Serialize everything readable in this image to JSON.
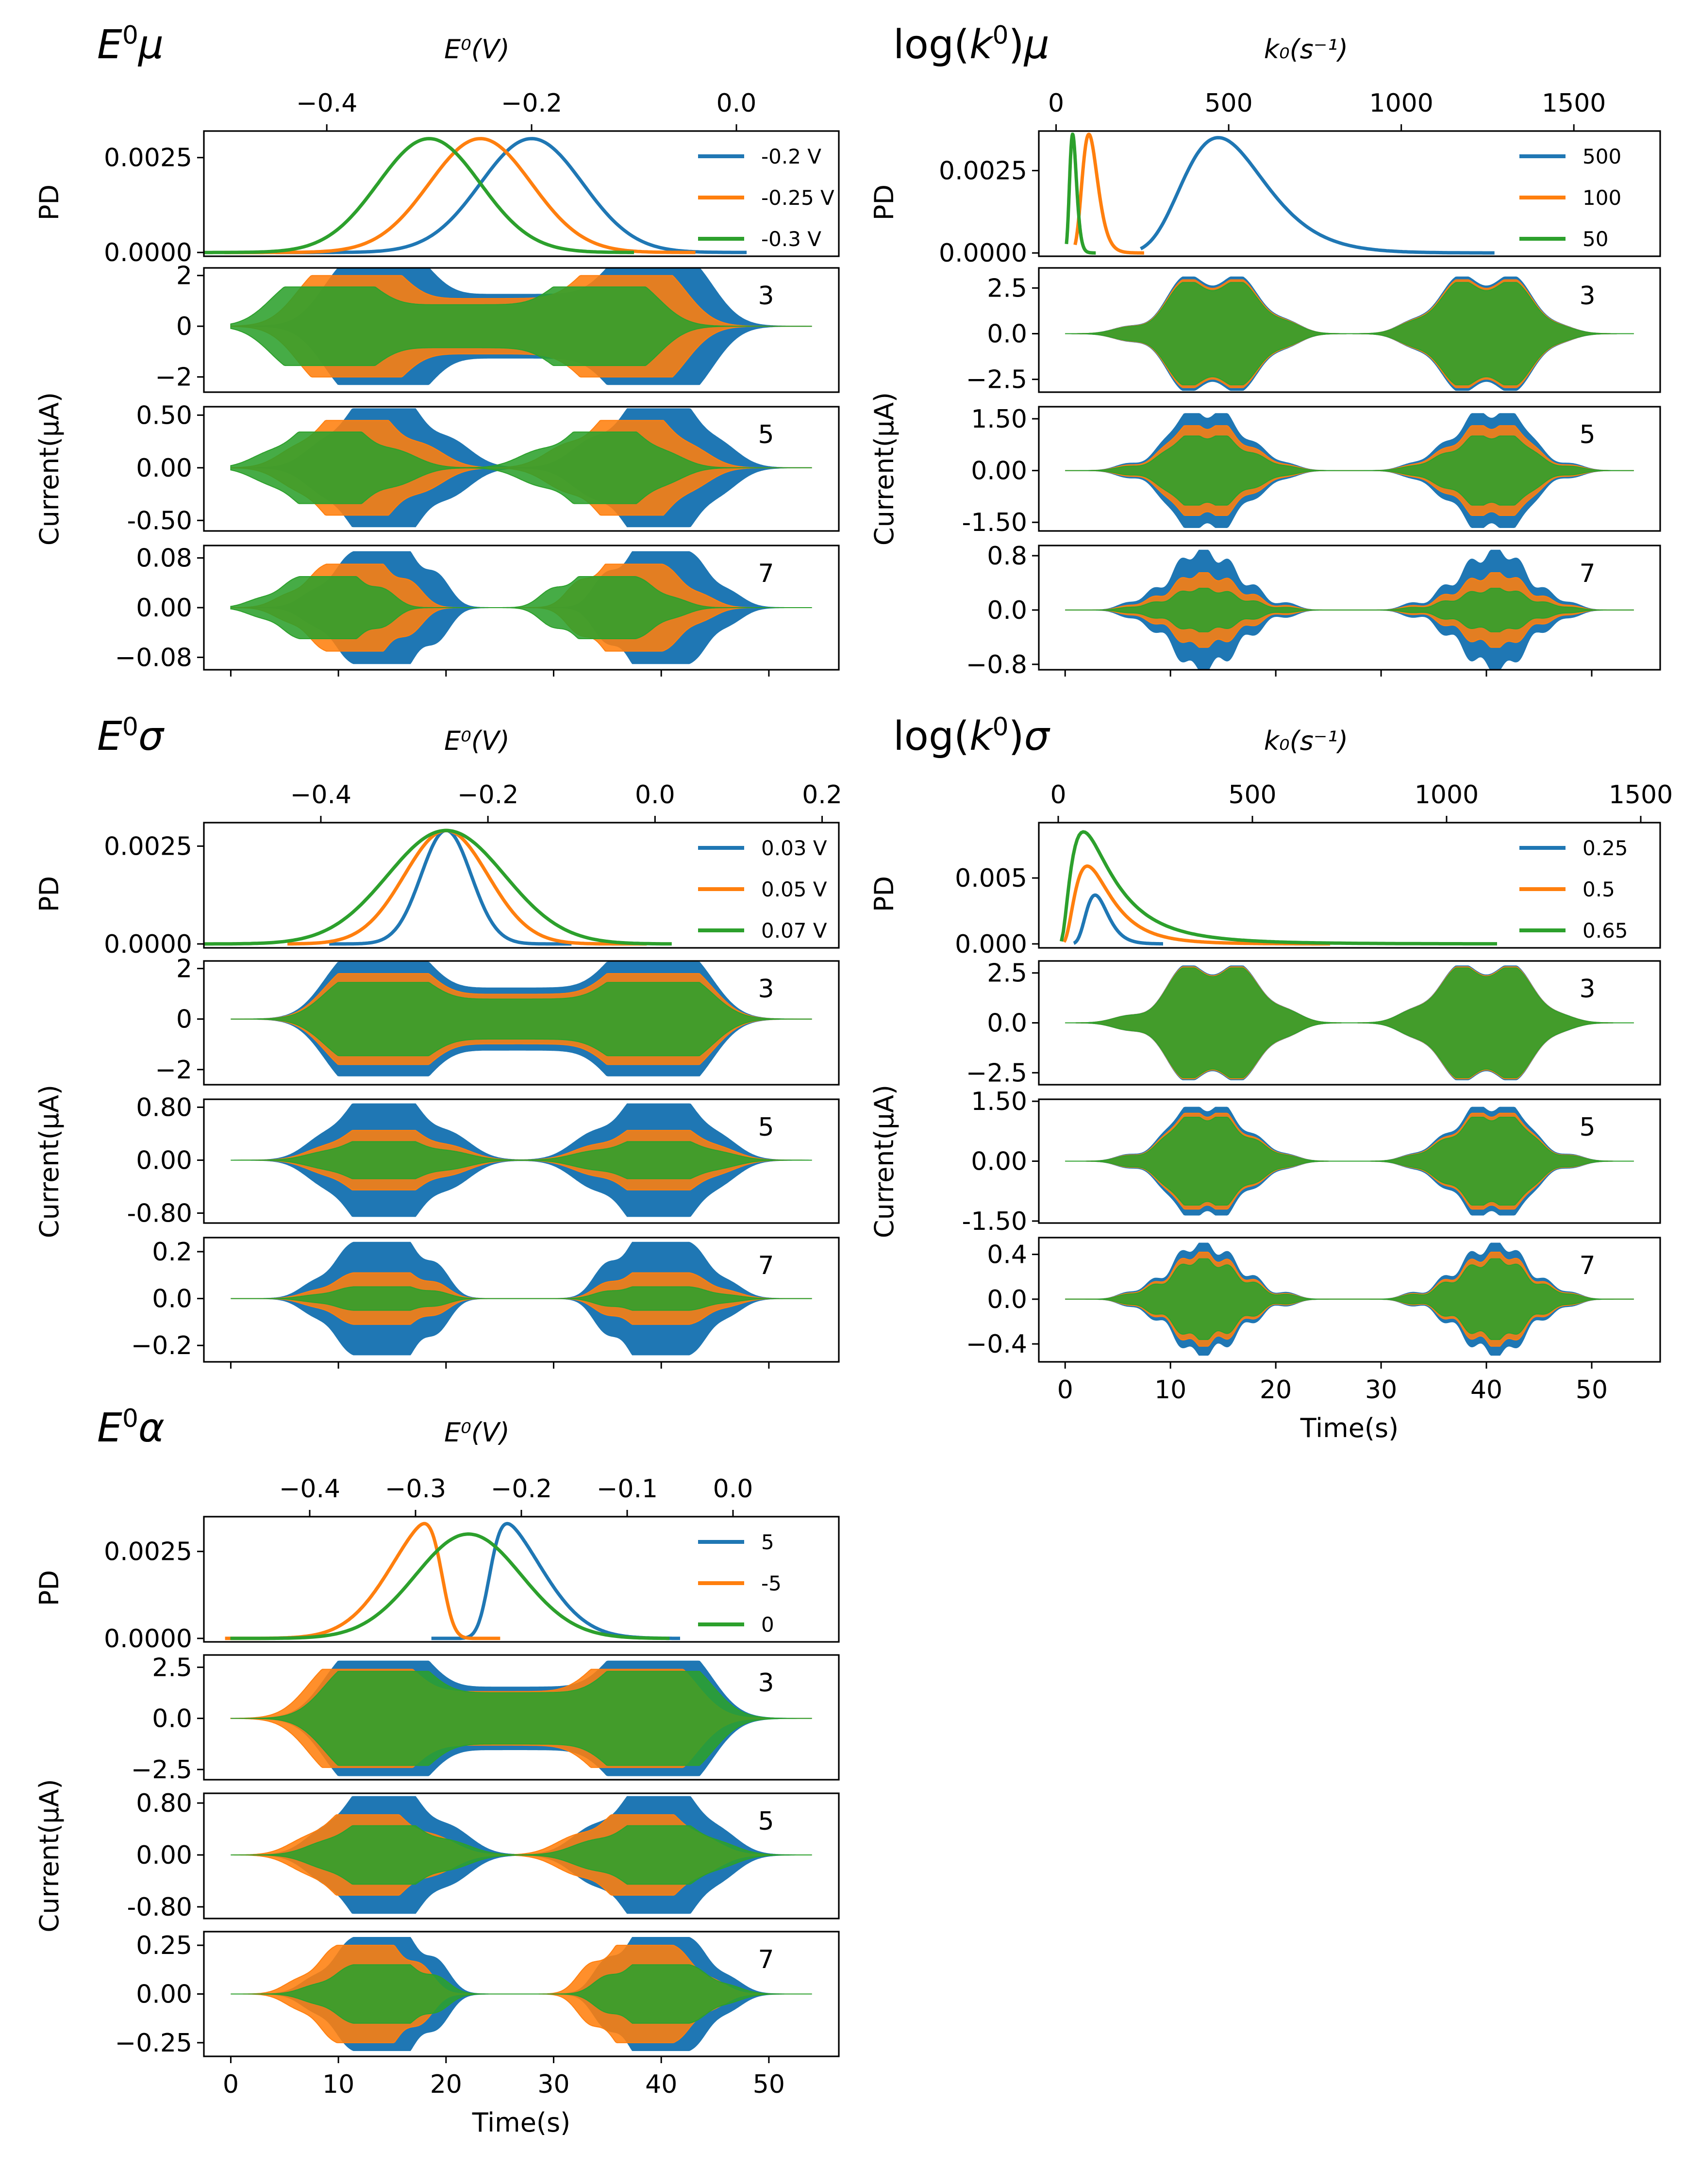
{
  "chart_data": [
    {
      "type": "line",
      "title": "E⁰μ",
      "title_parts": {
        "base": "E",
        "sup": "0",
        "greek": "μ"
      },
      "pd": {
        "top_axis_label": "E⁰(V)",
        "top_axis": {
          "range": [
            -0.52,
            0.1
          ],
          "ticks": [
            -0.4,
            -0.2,
            0.0
          ],
          "tick_labels": [
            "−0.4",
            "−0.2",
            "0.0"
          ]
        },
        "ylabel": "PD",
        "ylim": [
          -0.0001,
          0.0032
        ],
        "yticks": [
          0.0,
          0.0025
        ],
        "ytick_labels": [
          "0.0000",
          "0.0025"
        ],
        "legend_position": "upper right",
        "series": [
          {
            "name": "-0.2 V",
            "color": "#1f77b4",
            "mean": -0.2,
            "sd": 0.05,
            "range": [
              -0.45,
              0.01
            ]
          },
          {
            "name": "-0.25 V",
            "color": "#ff7f0e",
            "mean": -0.25,
            "sd": 0.05,
            "range": [
              -0.5,
              -0.04
            ]
          },
          {
            "name": "-0.3 V",
            "color": "#2ca02c",
            "mean": -0.3,
            "sd": 0.05,
            "range": [
              -0.52,
              -0.1
            ]
          }
        ]
      },
      "harmonics": [
        {
          "label": "3",
          "ylim": [
            -2.6,
            2.3
          ],
          "yticks": [
            -2,
            0,
            2
          ],
          "ytick_labels": [
            "−2",
            "0",
            "2"
          ],
          "amps": [
            2.3,
            2.0,
            1.55
          ],
          "envelope": "h3",
          "shift": [
            0,
            -2.5,
            -5
          ]
        },
        {
          "label": "5",
          "ylim": [
            -0.6,
            0.58
          ],
          "yticks": [
            -0.5,
            0.0,
            0.5
          ],
          "ytick_labels": [
            "-0.50",
            "0.00",
            "0.50"
          ],
          "amps": [
            0.56,
            0.45,
            0.34
          ],
          "envelope": "h5",
          "shift": [
            0,
            -2.5,
            -5
          ]
        },
        {
          "label": "7",
          "ylim": [
            -0.1,
            0.1
          ],
          "yticks": [
            -0.08,
            0.0,
            0.08
          ],
          "ytick_labels": [
            "−0.08",
            "0.00",
            "0.08"
          ],
          "amps": [
            0.09,
            0.07,
            0.05
          ],
          "envelope": "h7",
          "shift": [
            0,
            -2.5,
            -5
          ]
        }
      ],
      "current_ylabel": "Current(μA)"
    },
    {
      "type": "line",
      "title": "log(k⁰)μ",
      "title_parts": {
        "pre": "log(",
        "base": "k",
        "sup": "0",
        "post": ")",
        "greek": "μ"
      },
      "pd": {
        "top_axis_label": "k₀(s⁻¹)",
        "top_axis": {
          "range": [
            -50,
            1750
          ],
          "ticks": [
            0,
            500,
            1000,
            1500
          ],
          "tick_labels": [
            "0",
            "500",
            "1000",
            "1500"
          ]
        },
        "ylabel": "PD",
        "ylim": [
          -0.0001,
          0.0037
        ],
        "yticks": [
          0.0,
          0.0025
        ],
        "ytick_labels": [
          "0.0000",
          "0.0025"
        ],
        "legend_position": "upper right",
        "series": [
          {
            "name": "500",
            "color": "#1f77b4",
            "peak_x": 470,
            "range": [
              245,
              1270
            ],
            "kind": "lognorm",
            "height": 0.0035
          },
          {
            "name": "100",
            "color": "#ff7f0e",
            "peak_x": 95,
            "range": [
              55,
              255
            ],
            "kind": "lognorm",
            "height": 0.0036
          },
          {
            "name": "50",
            "color": "#2ca02c",
            "peak_x": 48,
            "range": [
              30,
              115
            ],
            "kind": "lognorm",
            "height": 0.0036
          }
        ]
      },
      "harmonics": [
        {
          "label": "3",
          "ylim": [
            -3.2,
            3.6
          ],
          "yticks": [
            -2.5,
            0.0,
            2.5
          ],
          "ytick_labels": [
            "−2.5",
            "0.0",
            "2.5"
          ],
          "amps": [
            3.1,
            2.95,
            2.8
          ],
          "envelope": "k3",
          "shift": [
            0,
            0,
            0
          ]
        },
        {
          "label": "5",
          "ylim": [
            -1.75,
            1.85
          ],
          "yticks": [
            -1.5,
            0.0,
            1.5
          ],
          "ytick_labels": [
            "-1.50",
            "0.00",
            "1.50"
          ],
          "amps": [
            1.65,
            1.3,
            1.0
          ],
          "envelope": "k5",
          "shift": [
            0,
            0,
            0
          ]
        },
        {
          "label": "7",
          "ylim": [
            -0.88,
            0.95
          ],
          "yticks": [
            -0.8,
            0.0,
            0.8
          ],
          "ytick_labels": [
            "−0.8",
            "0.0",
            "0.8"
          ],
          "amps": [
            0.88,
            0.55,
            0.32
          ],
          "envelope": "k7",
          "shift": [
            0,
            0,
            0
          ]
        }
      ],
      "current_ylabel": "Current(μA)"
    },
    {
      "type": "line",
      "title": "E⁰σ",
      "title_parts": {
        "base": "E",
        "sup": "0",
        "greek": "σ"
      },
      "pd": {
        "top_axis_label": "E⁰(V)",
        "top_axis": {
          "range": [
            -0.54,
            0.22
          ],
          "ticks": [
            -0.4,
            -0.2,
            0.0,
            0.2
          ],
          "tick_labels": [
            "−0.4",
            "−0.2",
            "0.0",
            "0.2"
          ]
        },
        "ylabel": "PD",
        "ylim": [
          -0.0001,
          0.0031
        ],
        "yticks": [
          0.0,
          0.0025
        ],
        "ytick_labels": [
          "0.0000",
          "0.0025"
        ],
        "legend_position": "upper right",
        "series": [
          {
            "name": "0.03 V",
            "color": "#1f77b4",
            "mean": -0.25,
            "sd": 0.03,
            "range": [
              -0.39,
              -0.1
            ],
            "height": 0.0029
          },
          {
            "name": "0.05 V",
            "color": "#ff7f0e",
            "mean": -0.25,
            "sd": 0.05,
            "range": [
              -0.44,
              -0.01
            ],
            "height": 0.0029
          },
          {
            "name": "0.07 V",
            "color": "#2ca02c",
            "mean": -0.25,
            "sd": 0.07,
            "range": [
              -0.54,
              0.02
            ],
            "height": 0.0029
          }
        ]
      },
      "harmonics": [
        {
          "label": "3",
          "ylim": [
            -2.6,
            2.3
          ],
          "yticks": [
            -2,
            0,
            2
          ],
          "ytick_labels": [
            "−2",
            "0",
            "2"
          ],
          "amps": [
            2.25,
            1.8,
            1.45
          ],
          "envelope": "h3",
          "shift": [
            0,
            0,
            0
          ]
        },
        {
          "label": "5",
          "ylim": [
            -0.95,
            0.92
          ],
          "yticks": [
            -0.8,
            0.0,
            0.8
          ],
          "ytick_labels": [
            "-0.80",
            "0.00",
            "0.80"
          ],
          "amps": [
            0.85,
            0.45,
            0.28
          ],
          "envelope": "h5",
          "shift": [
            0,
            0,
            0
          ]
        },
        {
          "label": "7",
          "ylim": [
            -0.27,
            0.26
          ],
          "yticks": [
            -0.2,
            0.0,
            0.2
          ],
          "ytick_labels": [
            "−0.2",
            "0.0",
            "0.2"
          ],
          "amps": [
            0.24,
            0.11,
            0.05
          ],
          "envelope": "h7",
          "shift": [
            0,
            0,
            0
          ]
        }
      ],
      "current_ylabel": "Current(μA)"
    },
    {
      "type": "line",
      "title": "log(k⁰)σ",
      "title_parts": {
        "pre": "log(",
        "base": "k",
        "sup": "0",
        "post": ")",
        "greek": "σ"
      },
      "pd": {
        "top_axis_label": "k₀(s⁻¹)",
        "top_axis": {
          "range": [
            -50,
            1550
          ],
          "ticks": [
            0,
            500,
            1000,
            1500
          ],
          "tick_labels": [
            "0",
            "500",
            "1000",
            "1500"
          ]
        },
        "ylabel": "PD",
        "ylim": [
          -0.0003,
          0.0092
        ],
        "yticks": [
          0.0,
          0.005
        ],
        "ytick_labels": [
          "0.000",
          "0.005"
        ],
        "legend_position": "upper right",
        "series": [
          {
            "name": "0.25",
            "color": "#1f77b4",
            "peak_x": 95,
            "range": [
              40,
              270
            ],
            "kind": "lognorm",
            "height": 0.0037
          },
          {
            "name": "0.5",
            "color": "#ff7f0e",
            "peak_x": 75,
            "range": [
              15,
              700
            ],
            "kind": "lognorm",
            "height": 0.0059
          },
          {
            "name": "0.65",
            "color": "#2ca02c",
            "peak_x": 65,
            "range": [
              8,
              1130
            ],
            "kind": "lognorm",
            "height": 0.0085
          }
        ]
      },
      "harmonics": [
        {
          "label": "3",
          "ylim": [
            -3.1,
            3.1
          ],
          "yticks": [
            -2.5,
            0.0,
            2.5
          ],
          "ytick_labels": [
            "−2.5",
            "0.0",
            "2.5"
          ],
          "amps": [
            2.85,
            2.8,
            2.75
          ],
          "envelope": "k3",
          "shift": [
            0,
            0,
            0
          ]
        },
        {
          "label": "5",
          "ylim": [
            -1.55,
            1.55
          ],
          "yticks": [
            -1.5,
            0.0,
            1.5
          ],
          "ytick_labels": [
            "-1.50",
            "0.00",
            "1.50"
          ],
          "amps": [
            1.35,
            1.2,
            1.1
          ],
          "envelope": "k5",
          "shift": [
            0,
            0,
            0
          ]
        },
        {
          "label": "7",
          "ylim": [
            -0.56,
            0.55
          ],
          "yticks": [
            -0.4,
            0.0,
            0.4
          ],
          "ytick_labels": [
            "−0.4",
            "0.0",
            "0.4"
          ],
          "amps": [
            0.5,
            0.42,
            0.36
          ],
          "envelope": "k7",
          "shift": [
            0,
            0,
            0
          ]
        }
      ],
      "current_ylabel": "Current(μA)",
      "xlabel": "Time(s)",
      "xticks": [
        0,
        10,
        20,
        30,
        40,
        50
      ],
      "xlim": [
        -2.5,
        56.5
      ]
    },
    {
      "type": "line",
      "title": "E⁰α",
      "title_parts": {
        "base": "E",
        "sup": "0",
        "greek": "α"
      },
      "pd": {
        "top_axis_label": "E⁰(V)",
        "top_axis": {
          "range": [
            -0.5,
            0.1
          ],
          "ticks": [
            -0.4,
            -0.3,
            -0.2,
            -0.1,
            0.0
          ],
          "tick_labels": [
            "−0.4",
            "−0.3",
            "−0.2",
            "−0.1",
            "0.0"
          ]
        },
        "ylabel": "PD",
        "ylim": [
          -0.0001,
          0.0035
        ],
        "yticks": [
          0.0,
          0.0025
        ],
        "ytick_labels": [
          "0.0000",
          "0.0025"
        ],
        "legend_position": "upper right",
        "series": [
          {
            "name": "5",
            "color": "#1f77b4",
            "kind": "skew",
            "mode": -0.23,
            "scale": 0.045,
            "alpha": 5,
            "range": [
              -0.285,
              -0.05
            ],
            "height": 0.0033
          },
          {
            "name": "-5",
            "color": "#ff7f0e",
            "kind": "skew",
            "mode": -0.275,
            "scale": 0.045,
            "alpha": -5,
            "range": [
              -0.48,
              -0.22
            ],
            "height": 0.0033
          },
          {
            "name": "0",
            "color": "#2ca02c",
            "kind": "gauss",
            "mean": -0.25,
            "sd": 0.05,
            "range": [
              -0.475,
              -0.06
            ],
            "height": 0.003
          }
        ]
      },
      "harmonics": [
        {
          "label": "3",
          "ylim": [
            -3.0,
            3.1
          ],
          "yticks": [
            -2.5,
            0.0,
            2.5
          ],
          "ytick_labels": [
            "−2.5",
            "0.0",
            "2.5"
          ],
          "amps": [
            2.8,
            2.4,
            2.3
          ],
          "envelope": "h3",
          "shift": [
            0,
            -1.5,
            0
          ]
        },
        {
          "label": "5",
          "ylim": [
            -0.98,
            0.95
          ],
          "yticks": [
            -0.8,
            0.0,
            0.8
          ],
          "ytick_labels": [
            "-0.80",
            "0.00",
            "0.80"
          ],
          "amps": [
            0.9,
            0.62,
            0.45
          ],
          "envelope": "h5",
          "shift": [
            0,
            -1.5,
            0
          ]
        },
        {
          "label": "7",
          "ylim": [
            -0.32,
            0.32
          ],
          "yticks": [
            -0.25,
            0.0,
            0.25
          ],
          "ytick_labels": [
            "−0.25",
            "0.00",
            "0.25"
          ],
          "amps": [
            0.29,
            0.25,
            0.15
          ],
          "envelope": "h7",
          "shift": [
            0,
            -1.5,
            0
          ]
        }
      ],
      "current_ylabel": "Current(μA)",
      "xlabel": "Time(s)",
      "xticks": [
        0,
        10,
        20,
        30,
        40,
        50
      ],
      "xlim": [
        -2.5,
        56.5
      ]
    }
  ],
  "time_axis": {
    "xlim": [
      -2.5,
      56.5
    ],
    "xticks": [
      0,
      10,
      20,
      30,
      40,
      50
    ],
    "xlabel": "Time(s)"
  }
}
